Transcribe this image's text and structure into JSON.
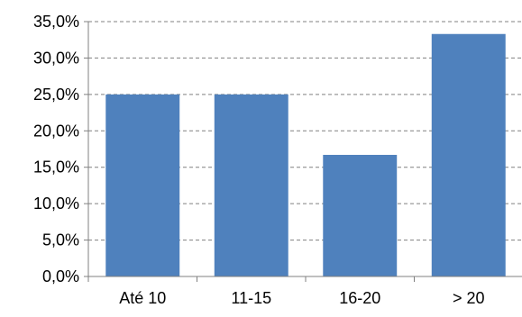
{
  "chart_data": {
    "type": "bar",
    "categories": [
      "Até 10",
      "11-15",
      "16-20",
      "> 20"
    ],
    "values": [
      25.0,
      25.0,
      16.7,
      33.3
    ],
    "y_tick_labels": [
      "0,0%",
      "5,0%",
      "10,0%",
      "15,0%",
      "20,0%",
      "25,0%",
      "30,0%",
      "35,0%"
    ],
    "ylim": [
      0,
      35
    ],
    "y_tick_step": 5,
    "title": "",
    "xlabel": "",
    "ylabel": "",
    "grid": "horizontal dashed",
    "legend": "none",
    "bar_color": "#4F81BD",
    "grid_color": "#808080",
    "axis_color": "#808080"
  }
}
